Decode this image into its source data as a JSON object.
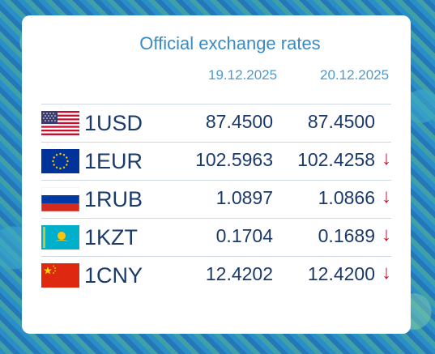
{
  "title": "Official exchange rates",
  "dates": [
    "19.12.2025",
    "20.12.2025"
  ],
  "colors": {
    "title": "#3a8bc4",
    "value": "#1a3a6b",
    "down_arrow": "#c8102e"
  },
  "rows": [
    {
      "code": "1USD",
      "flag": "us-flag-icon",
      "prev": "87.4500",
      "curr": "87.4500",
      "trend": ""
    },
    {
      "code": "1EUR",
      "flag": "eu-flag-icon",
      "prev": "102.5963",
      "curr": "102.4258",
      "trend": "↓"
    },
    {
      "code": "1RUB",
      "flag": "ru-flag-icon",
      "prev": "1.0897",
      "curr": "1.0866",
      "trend": "↓"
    },
    {
      "code": "1KZT",
      "flag": "kz-flag-icon",
      "prev": "0.1704",
      "curr": "0.1689",
      "trend": "↓"
    },
    {
      "code": "1CNY",
      "flag": "cn-flag-icon",
      "prev": "12.4202",
      "curr": "12.4200",
      "trend": "↓"
    }
  ]
}
